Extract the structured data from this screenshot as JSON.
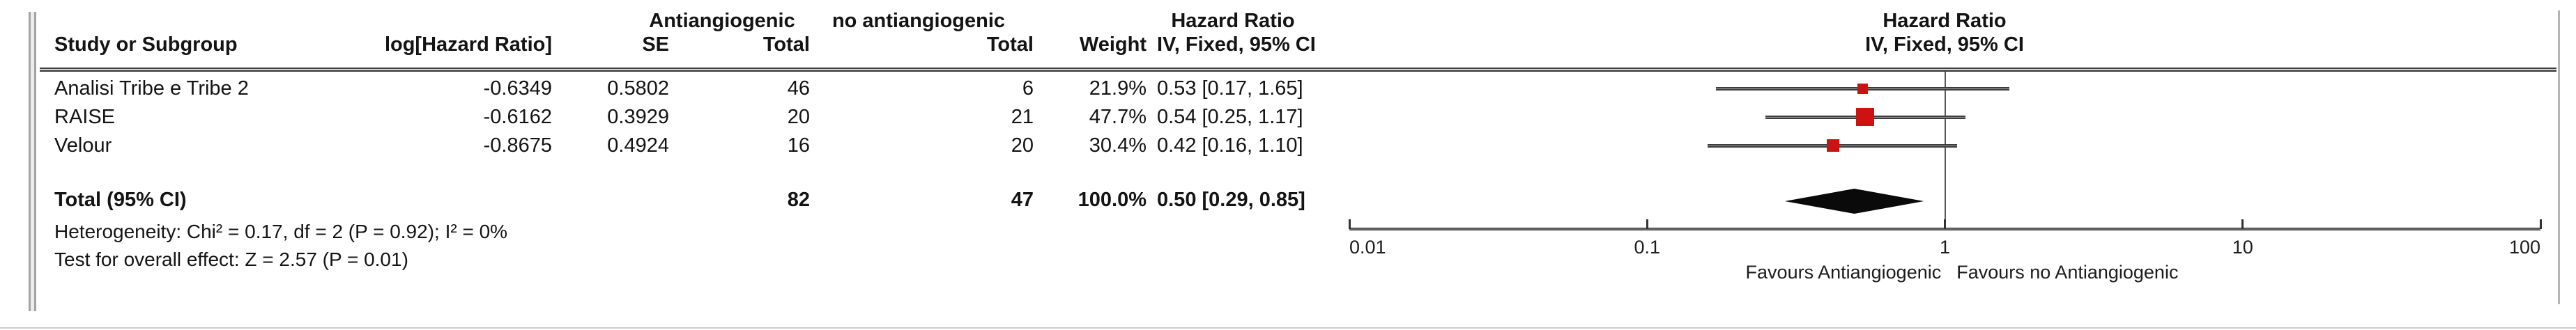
{
  "header": {
    "group_experimental": "Antiangiogenic",
    "group_control": "no antiangiogenic",
    "effect_col_title": "Hazard Ratio",
    "effect_col_subtitle": "IV, Fixed, 95% CI",
    "plot_col_title": "Hazard Ratio",
    "plot_col_subtitle": "IV, Fixed, 95% CI",
    "study": "Study or Subgroup",
    "loghr": "log[Hazard Ratio]",
    "se": "SE",
    "total_experimental": "Total",
    "total_control": "Total",
    "weight": "Weight"
  },
  "rows": [
    {
      "study": "Analisi Tribe e Tribe 2",
      "loghr": "-0.6349",
      "se": "0.5802",
      "total1": "46",
      "total2": "6",
      "weight": "21.9%",
      "ci": "0.53 [0.17, 1.65]"
    },
    {
      "study": "RAISE",
      "loghr": "-0.6162",
      "se": "0.3929",
      "total1": "20",
      "total2": "21",
      "weight": "47.7%",
      "ci": "0.54 [0.25, 1.17]"
    },
    {
      "study": "Velour",
      "loghr": "-0.8675",
      "se": "0.4924",
      "total1": "16",
      "total2": "20",
      "weight": "30.4%",
      "ci": "0.42 [0.16, 1.10]"
    }
  ],
  "total_row": {
    "label": "Total (95% CI)",
    "total1": "82",
    "total2": "47",
    "weight": "100.0%",
    "ci": "0.50 [0.29, 0.85]"
  },
  "footnotes": {
    "heterogeneity": "Heterogeneity: Chi² = 0.17, df = 2 (P = 0.92); I² = 0%",
    "overall_effect": "Test for overall effect: Z = 2.57 (P = 0.01)"
  },
  "chart_data": {
    "type": "scatter",
    "subtype": "forest-plot",
    "title": "Hazard Ratio IV, Fixed, 95% CI",
    "x_scale": "log10",
    "xlim": [
      0.01,
      100
    ],
    "x_ticks": [
      "0.01",
      "0.1",
      "1",
      "10",
      "100"
    ],
    "null_line_value": 1,
    "studies": [
      {
        "name": "Analisi Tribe e Tribe 2",
        "hr": 0.53,
        "ci_low": 0.17,
        "ci_high": 1.65,
        "weight_pct": 21.9
      },
      {
        "name": "RAISE",
        "hr": 0.54,
        "ci_low": 0.25,
        "ci_high": 1.17,
        "weight_pct": 47.7
      },
      {
        "name": "Velour",
        "hr": 0.42,
        "ci_low": 0.16,
        "ci_high": 1.1,
        "weight_pct": 30.4
      }
    ],
    "pooled": {
      "label": "Total (95% CI)",
      "hr": 0.5,
      "ci_low": 0.29,
      "ci_high": 0.85,
      "weight_pct": 100.0
    },
    "caption_left": "Favours Antiangiogenic",
    "caption_right": "Favours no Antiangiogenic",
    "legend_position": "none",
    "grid": false
  },
  "colors": {
    "marker": "#cc1212",
    "ci_line": "#3d3d3d",
    "diamond": "#0a0a0a",
    "axis": "#333333",
    "frame": "#a4a4a4",
    "text": "#141414"
  }
}
